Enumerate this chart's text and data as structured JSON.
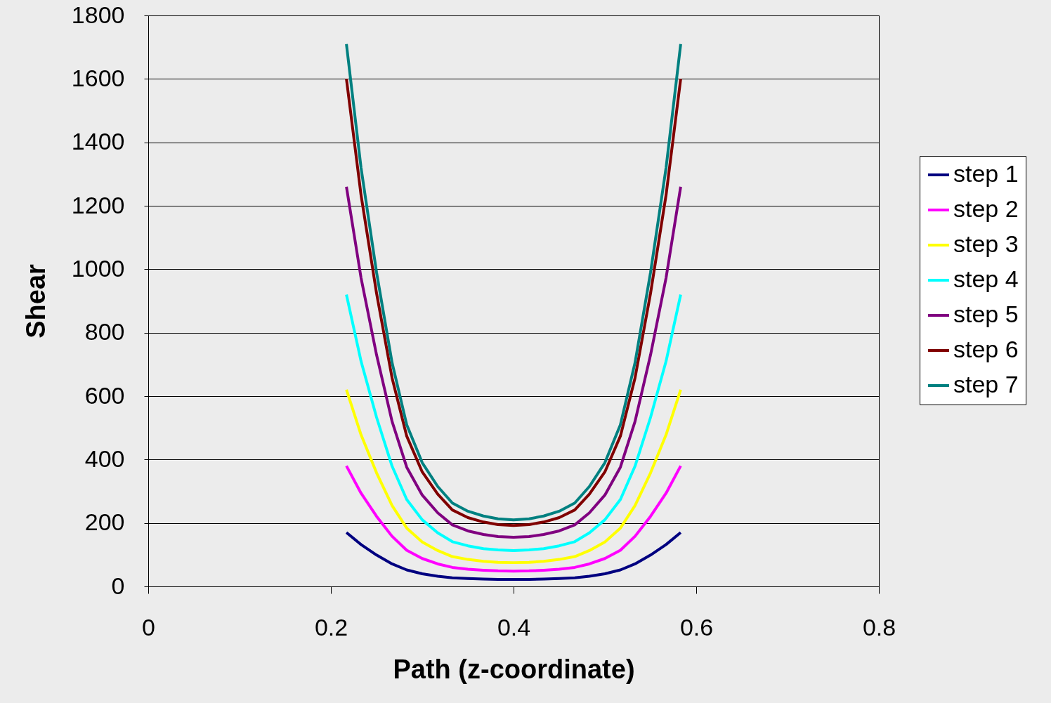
{
  "chart_data": {
    "type": "line",
    "xlabel": "Path (z-coordinate)",
    "ylabel": "Shear",
    "x": [
      0.217,
      0.233,
      0.25,
      0.267,
      0.283,
      0.3,
      0.317,
      0.333,
      0.35,
      0.367,
      0.383,
      0.4,
      0.417,
      0.433,
      0.45,
      0.467,
      0.483,
      0.5,
      0.517,
      0.533,
      0.55,
      0.567,
      0.583
    ],
    "series": [
      {
        "name": "step 1",
        "color": "#000080",
        "values": [
          170,
          132,
          99,
          71,
          52,
          40,
          32,
          27,
          25,
          23,
          22,
          22,
          22,
          23,
          25,
          27,
          32,
          40,
          52,
          71,
          99,
          132,
          170
        ]
      },
      {
        "name": "step 2",
        "color": "#ff00ff",
        "values": [
          380,
          294,
          221,
          158,
          114,
          88,
          71,
          60,
          54,
          51,
          49,
          48,
          49,
          51,
          54,
          60,
          71,
          88,
          114,
          158,
          221,
          294,
          380
        ]
      },
      {
        "name": "step 3",
        "color": "#ffff00",
        "values": [
          620,
          478,
          358,
          255,
          184,
          140,
          113,
          94,
          85,
          79,
          76,
          75,
          76,
          79,
          85,
          94,
          113,
          140,
          184,
          255,
          358,
          478,
          620
        ]
      },
      {
        "name": "step 4",
        "color": "#00ffff",
        "values": [
          920,
          710,
          533,
          379,
          274,
          210,
          169,
          141,
          128,
          119,
          115,
          113,
          115,
          119,
          128,
          141,
          169,
          210,
          274,
          379,
          533,
          710,
          920
        ]
      },
      {
        "name": "step 5",
        "color": "#800080",
        "values": [
          1260,
          973,
          730,
          520,
          376,
          288,
          232,
          194,
          175,
          164,
          157,
          155,
          157,
          164,
          175,
          194,
          232,
          288,
          376,
          520,
          730,
          973,
          1260
        ]
      },
      {
        "name": "step 6",
        "color": "#800000",
        "values": [
          1600,
          1234,
          924,
          657,
          474,
          361,
          291,
          241,
          217,
          203,
          195,
          192,
          195,
          203,
          217,
          241,
          291,
          361,
          474,
          657,
          924,
          1234,
          1600
        ]
      },
      {
        "name": "step 7",
        "color": "#008080",
        "values": [
          1710,
          1320,
          990,
          705,
          510,
          390,
          315,
          263,
          237,
          222,
          213,
          210,
          213,
          222,
          237,
          263,
          315,
          390,
          510,
          705,
          990,
          1320,
          1710
        ]
      }
    ],
    "xlim": [
      0,
      0.8
    ],
    "xticks": [
      0,
      0.2,
      0.4,
      0.6,
      0.8
    ],
    "ylim": [
      0,
      1800
    ],
    "yticks": [
      0,
      200,
      400,
      600,
      800,
      1000,
      1200,
      1400,
      1600,
      1800
    ],
    "grid": "y",
    "legend": "right",
    "line_style": "solid",
    "marker": "none"
  }
}
